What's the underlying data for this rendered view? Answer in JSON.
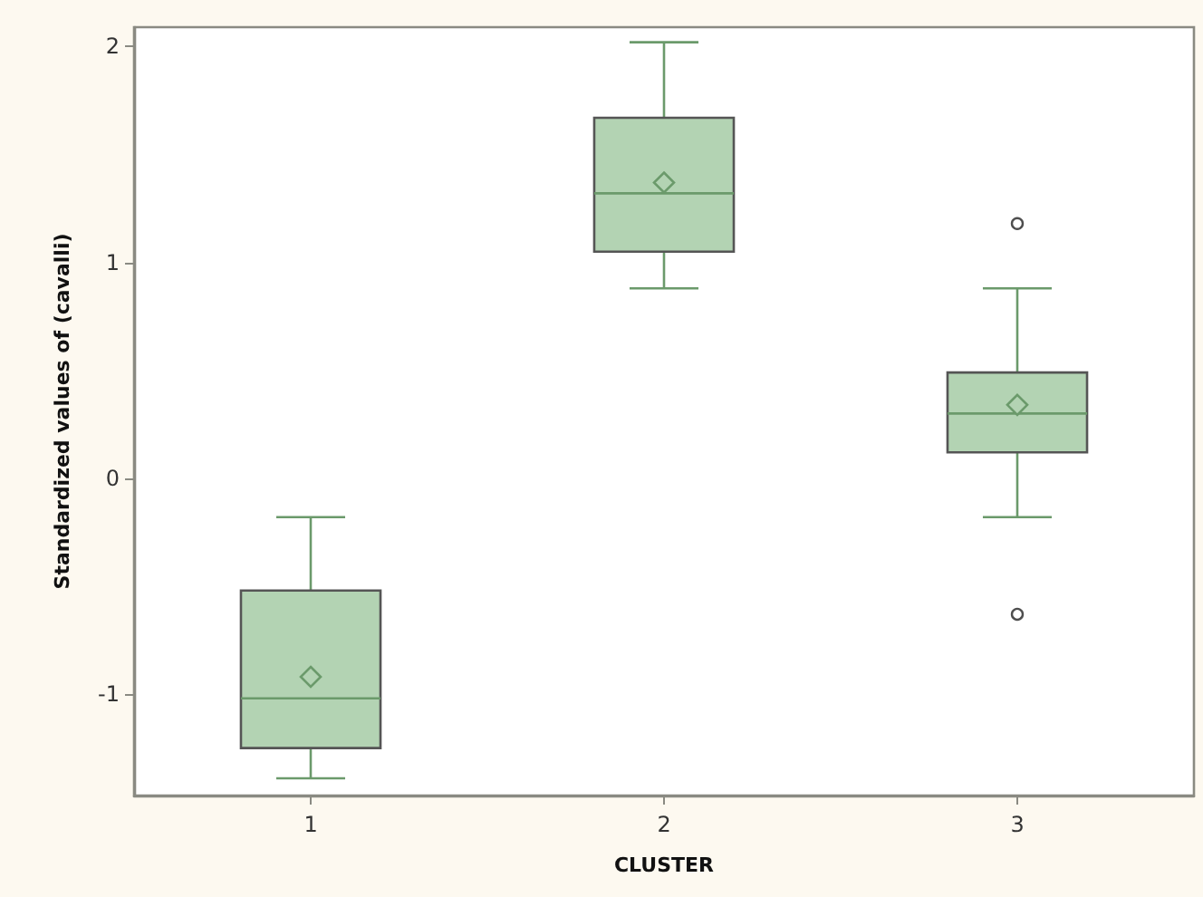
{
  "chart_data": {
    "type": "box",
    "xlabel": "CLUSTER",
    "ylabel": "Standardized values of (cavalli)",
    "categories": [
      "1",
      "2",
      "3"
    ],
    "boxes": [
      {
        "low": -1.39,
        "q1": -1.25,
        "median": -1.02,
        "q3": -0.52,
        "high": -0.18,
        "mean": -0.92
      },
      {
        "low": 0.88,
        "q1": 1.05,
        "median": 1.32,
        "q3": 1.67,
        "high": 2.02,
        "mean": 1.37
      },
      {
        "low": -0.18,
        "q1": 0.12,
        "median": 0.3,
        "q3": 0.49,
        "high": 0.88,
        "mean": 0.34,
        "outliers": [
          1.18,
          -0.63
        ]
      }
    ],
    "color": "#b3d3b3",
    "ylim": [
      -1.47,
      2.09
    ],
    "yticks": [
      -1,
      0,
      1,
      2
    ]
  }
}
